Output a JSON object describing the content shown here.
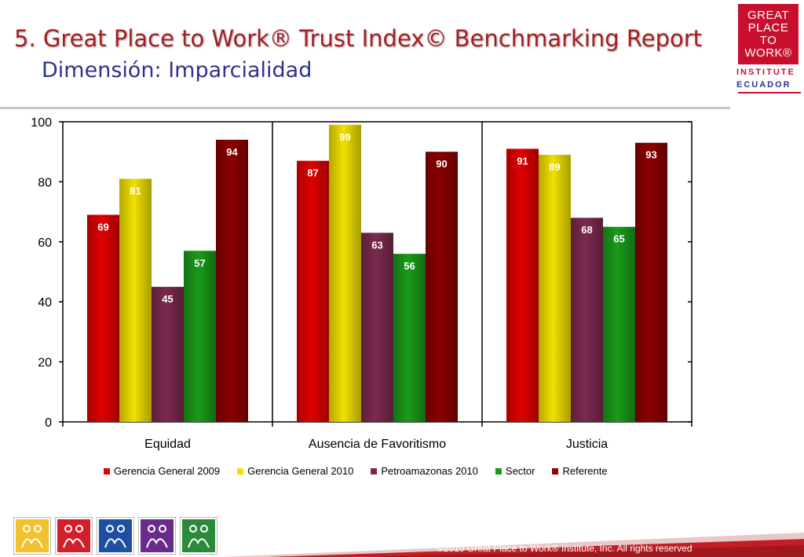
{
  "header": {
    "title": "5. Great Place to Work® Trust Index© Benchmarking Report",
    "subtitle": "Dimensión: Imparcialidad"
  },
  "logo": {
    "lines": [
      "GREAT",
      "PLACE",
      "TO",
      "WORK®"
    ],
    "institute": "INSTITUTE",
    "country": "ECUADOR"
  },
  "chart_data": {
    "type": "bar",
    "categories": [
      "Equidad",
      "Ausencia de Favoritismo",
      "Justicia"
    ],
    "series": [
      {
        "name": "Gerencia General 2009",
        "values": [
          69,
          87,
          91
        ],
        "color": "#e00000"
      },
      {
        "name": "Gerencia General 2010",
        "values": [
          81,
          99,
          89
        ],
        "color": "#f0e000"
      },
      {
        "name": "Petroamazonas 2010",
        "values": [
          45,
          63,
          68
        ],
        "color": "#7b2a4e"
      },
      {
        "name": "Sector",
        "values": [
          57,
          56,
          65
        ],
        "color": "#1a9a1a"
      },
      {
        "name": "Referente",
        "values": [
          94,
          90,
          93
        ],
        "color": "#8b0000"
      }
    ],
    "ylim": [
      0,
      100
    ],
    "yticks": [
      0,
      20,
      40,
      60,
      80,
      100
    ],
    "grid": false,
    "legend_position": "bottom",
    "data_label_color": "#ffffff"
  },
  "footer": {
    "copyright": "©2010 Great Place to Work® Institute, Inc. All rights reserved",
    "icon_colors": [
      "#f2c12e",
      "#d21f2b",
      "#1f4fa0",
      "#6a2c8c",
      "#2a8a3a"
    ]
  }
}
